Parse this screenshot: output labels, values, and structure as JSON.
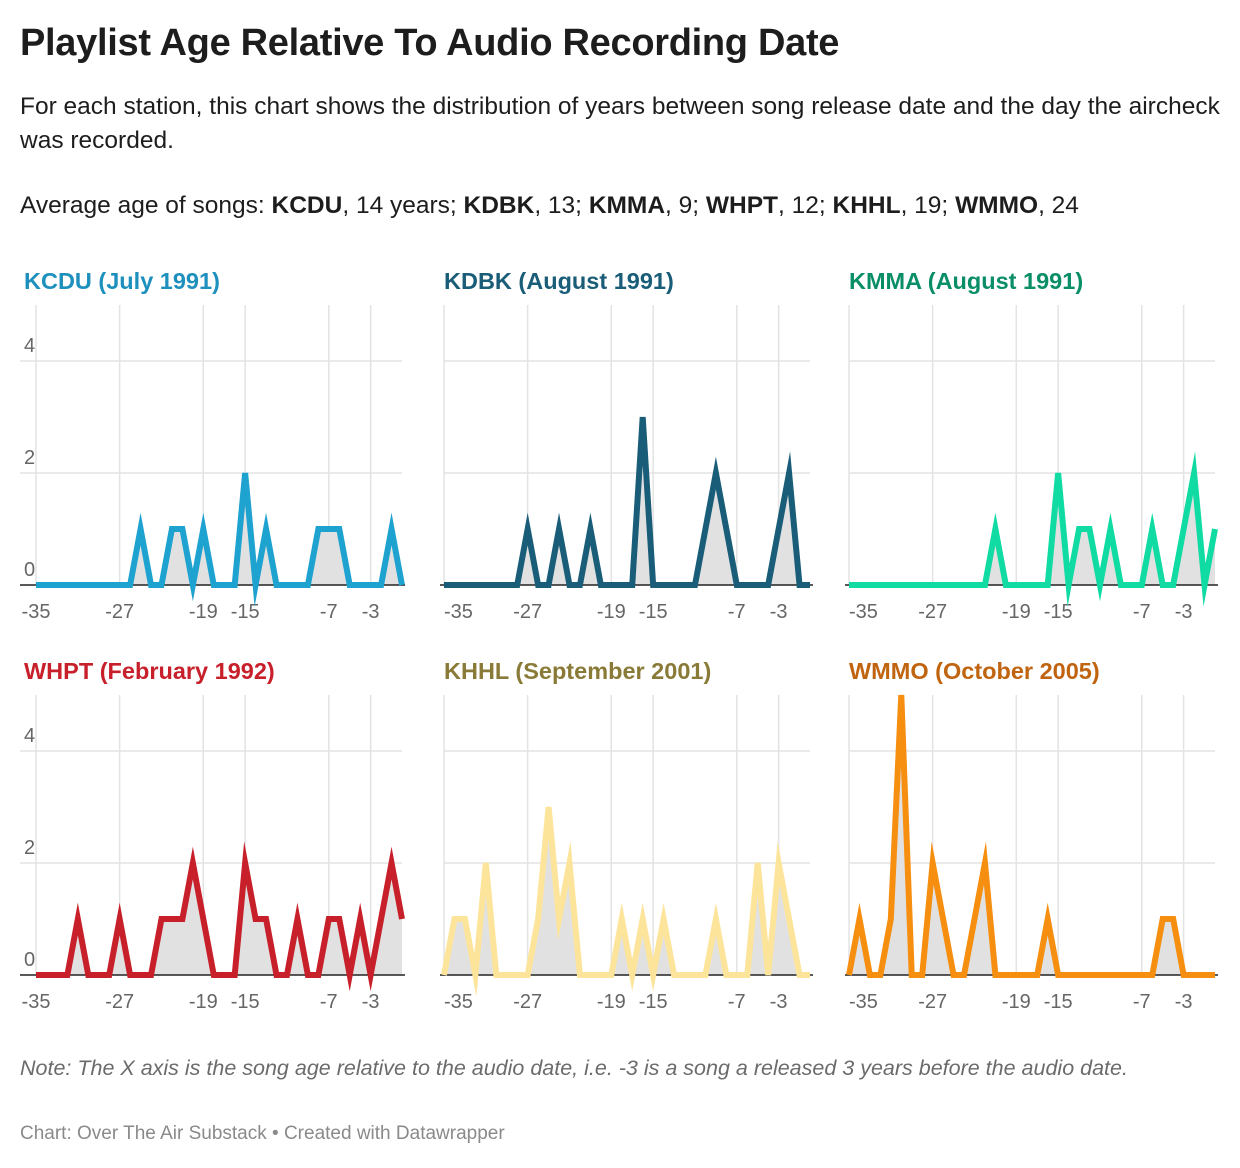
{
  "title": "Playlist Age Relative To Audio Recording Date",
  "subtitle": "For each station, this chart shows the distribution of years between song release date and the day the aircheck was recorded.",
  "average": {
    "label": "Average age of songs:",
    "items": [
      {
        "station": "KCDU",
        "text": ", 14 years;"
      },
      {
        "station": "KDBK",
        "text": ", 13;"
      },
      {
        "station": "KMMA",
        "text": ", 9;"
      },
      {
        "station": "WHPT",
        "text": ", 12;"
      },
      {
        "station": "KHHL",
        "text": ", 19;"
      },
      {
        "station": "WMMO",
        "text": ", 24"
      }
    ]
  },
  "note": "Note: The X axis is the song age relative to the audio date, i.e. -3 is a song a released 3 years before the audio date.",
  "footer": "Chart: Over The Air Substack • Created with Datawrapper",
  "chart_data": [
    {
      "type": "area",
      "title": "KCDU (July 1991)",
      "color": "#1ea2d0",
      "title_color": "#1e90bd",
      "x": [
        -35,
        -34,
        -33,
        -32,
        -31,
        -30,
        -29,
        -28,
        -27,
        -26,
        -25,
        -24,
        -23,
        -22,
        -21,
        -20,
        -19,
        -18,
        -17,
        -16,
        -15,
        -14,
        -13,
        -12,
        -11,
        -10,
        -9,
        -8,
        -7,
        -6,
        -5,
        -4,
        -3,
        -2,
        -1,
        0
      ],
      "values": [
        0,
        0,
        0,
        0,
        0,
        0,
        0,
        0,
        0,
        0,
        1,
        0,
        0,
        1,
        1,
        0,
        1,
        0,
        0,
        0,
        2,
        0,
        1,
        0,
        0,
        0,
        0,
        1,
        1,
        1,
        0,
        0,
        0,
        0,
        1,
        0
      ],
      "xlim": [
        -35,
        0
      ],
      "ylim": [
        0,
        5
      ],
      "xticks": [
        -35,
        -27,
        -19,
        -15,
        -7,
        -3
      ],
      "yticks": [
        0,
        2,
        4
      ],
      "grid": true
    },
    {
      "type": "area",
      "title": "KDBK (August 1991)",
      "color": "#1a5d78",
      "title_color": "#1a5d78",
      "x": [
        -35,
        -34,
        -33,
        -32,
        -31,
        -30,
        -29,
        -28,
        -27,
        -26,
        -25,
        -24,
        -23,
        -22,
        -21,
        -20,
        -19,
        -18,
        -17,
        -16,
        -15,
        -14,
        -13,
        -12,
        -11,
        -10,
        -9,
        -8,
        -7,
        -6,
        -5,
        -4,
        -3,
        -2,
        -1,
        0
      ],
      "values": [
        0,
        0,
        0,
        0,
        0,
        0,
        0,
        0,
        1,
        0,
        0,
        1,
        0,
        0,
        1,
        0,
        0,
        0,
        0,
        3,
        0,
        0,
        0,
        0,
        0,
        1,
        2,
        1,
        0,
        0,
        0,
        0,
        1,
        2,
        0,
        0
      ],
      "xlim": [
        -35,
        0
      ],
      "ylim": [
        0,
        5
      ],
      "xticks": [
        -35,
        -27,
        -19,
        -15,
        -7,
        -3
      ],
      "yticks": [
        0,
        2,
        4
      ],
      "grid": true
    },
    {
      "type": "area",
      "title": "KMMA (August 1991)",
      "color": "#0fdba2",
      "title_color": "#0a8e67",
      "x": [
        -35,
        -34,
        -33,
        -32,
        -31,
        -30,
        -29,
        -28,
        -27,
        -26,
        -25,
        -24,
        -23,
        -22,
        -21,
        -20,
        -19,
        -18,
        -17,
        -16,
        -15,
        -14,
        -13,
        -12,
        -11,
        -10,
        -9,
        -8,
        -7,
        -6,
        -5,
        -4,
        -3,
        -2,
        -1,
        0
      ],
      "values": [
        0,
        0,
        0,
        0,
        0,
        0,
        0,
        0,
        0,
        0,
        0,
        0,
        0,
        0,
        1,
        0,
        0,
        0,
        0,
        0,
        2,
        0,
        1,
        1,
        0,
        1,
        0,
        0,
        0,
        1,
        0,
        0,
        1,
        2,
        0,
        1
      ],
      "xlim": [
        -35,
        0
      ],
      "ylim": [
        0,
        5
      ],
      "xticks": [
        -35,
        -27,
        -19,
        -15,
        -7,
        -3
      ],
      "yticks": [
        0,
        2,
        4
      ],
      "grid": true
    },
    {
      "type": "area",
      "title": "WHPT (February 1992)",
      "color": "#c8202a",
      "title_color": "#c8202a",
      "x": [
        -35,
        -34,
        -33,
        -32,
        -31,
        -30,
        -29,
        -28,
        -27,
        -26,
        -25,
        -24,
        -23,
        -22,
        -21,
        -20,
        -19,
        -18,
        -17,
        -16,
        -15,
        -14,
        -13,
        -12,
        -11,
        -10,
        -9,
        -8,
        -7,
        -6,
        -5,
        -4,
        -3,
        -2,
        -1,
        0
      ],
      "values": [
        0,
        0,
        0,
        0,
        1,
        0,
        0,
        0,
        1,
        0,
        0,
        0,
        1,
        1,
        1,
        2,
        1,
        0,
        0,
        0,
        2,
        1,
        1,
        0,
        0,
        1,
        0,
        0,
        1,
        1,
        0,
        1,
        0,
        1,
        2,
        1
      ],
      "xlim": [
        -35,
        0
      ],
      "ylim": [
        0,
        5
      ],
      "xticks": [
        -35,
        -27,
        -19,
        -15,
        -7,
        -3
      ],
      "yticks": [
        0,
        2,
        4
      ],
      "grid": true
    },
    {
      "type": "area",
      "title": "KHHL (September 2001)",
      "color": "#fde49b",
      "title_color": "#8a7a38",
      "x": [
        -35,
        -34,
        -33,
        -32,
        -31,
        -30,
        -29,
        -28,
        -27,
        -26,
        -25,
        -24,
        -23,
        -22,
        -21,
        -20,
        -19,
        -18,
        -17,
        -16,
        -15,
        -14,
        -13,
        -12,
        -11,
        -10,
        -9,
        -8,
        -7,
        -6,
        -5,
        -4,
        -3,
        -2,
        -1,
        0
      ],
      "values": [
        0,
        1,
        1,
        0,
        2,
        0,
        0,
        0,
        0,
        1,
        3,
        1,
        2,
        0,
        0,
        0,
        0,
        1,
        0,
        1,
        0,
        1,
        0,
        0,
        0,
        0,
        1,
        0,
        0,
        0,
        2,
        0,
        2,
        1,
        0,
        0
      ],
      "xlim": [
        -35,
        0
      ],
      "ylim": [
        0,
        5
      ],
      "xticks": [
        -35,
        -27,
        -19,
        -15,
        -7,
        -3
      ],
      "yticks": [
        0,
        2,
        4
      ],
      "grid": true
    },
    {
      "type": "area",
      "title": "WMMO (October 2005)",
      "color": "#f68e10",
      "title_color": "#c0640f",
      "x": [
        -35,
        -34,
        -33,
        -32,
        -31,
        -30,
        -29,
        -28,
        -27,
        -26,
        -25,
        -24,
        -23,
        -22,
        -21,
        -20,
        -19,
        -18,
        -17,
        -16,
        -15,
        -14,
        -13,
        -12,
        -11,
        -10,
        -9,
        -8,
        -7,
        -6,
        -5,
        -4,
        -3,
        -2,
        -1,
        0
      ],
      "values": [
        0,
        1,
        0,
        0,
        1,
        5,
        0,
        0,
        2,
        1,
        0,
        0,
        1,
        2,
        0,
        0,
        0,
        0,
        0,
        1,
        0,
        0,
        0,
        0,
        0,
        0,
        0,
        0,
        0,
        0,
        1,
        1,
        0,
        0,
        0,
        0
      ],
      "xlim": [
        -35,
        0
      ],
      "ylim": [
        0,
        5
      ],
      "xticks": [
        -35,
        -27,
        -19,
        -15,
        -7,
        -3
      ],
      "yticks": [
        0,
        2,
        4
      ],
      "grid": true
    }
  ]
}
